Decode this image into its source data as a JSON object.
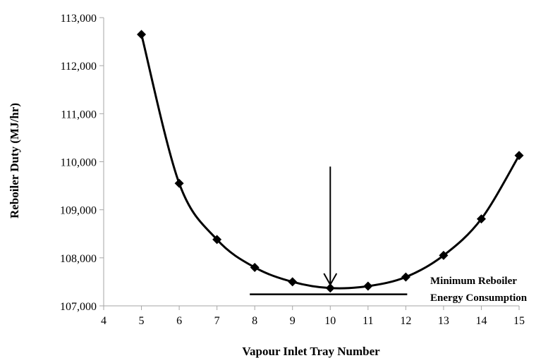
{
  "chart_data": {
    "type": "scatter",
    "title": "",
    "xlabel": "Vapour Inlet Tray Number",
    "ylabel": "Reboiler  Duty (MJ/hr)",
    "xlim": [
      4,
      15
    ],
    "ylim": [
      107000,
      113000
    ],
    "x_ticks": [
      4,
      5,
      6,
      7,
      8,
      9,
      10,
      11,
      12,
      13,
      14,
      15
    ],
    "x_tick_labels": [
      "4",
      "5",
      "6",
      "7",
      "8",
      "9",
      "10",
      "11",
      "12",
      "13",
      "14",
      "15"
    ],
    "y_ticks": [
      107000,
      108000,
      109000,
      110000,
      111000,
      112000,
      113000
    ],
    "y_tick_labels": [
      "107,000",
      "108,000",
      "109,000",
      "110,000",
      "111,000",
      "112,000",
      "113,000"
    ],
    "grid": false,
    "legend": "none",
    "smooth_line": true,
    "marker": "diamond",
    "series": [
      {
        "x": [
          5,
          6,
          7,
          8,
          9,
          10,
          11,
          12,
          13,
          14,
          15
        ],
        "y": [
          112650,
          109550,
          108380,
          107800,
          107500,
          107370,
          107410,
          107600,
          108050,
          108810,
          110130
        ]
      }
    ],
    "annotations": [
      {
        "type": "text",
        "lines": [
          "Minimum Reboiler",
          "Energy Consumption"
        ]
      },
      {
        "type": "arrow",
        "x": 10,
        "y_from": 109900,
        "y_to": 107440
      },
      {
        "type": "hline",
        "y": 107240,
        "x_from": 8,
        "x_to": 12
      }
    ],
    "colors": {
      "line": "#000000",
      "marker": "#000000",
      "axis": "#a6a6a6"
    }
  }
}
